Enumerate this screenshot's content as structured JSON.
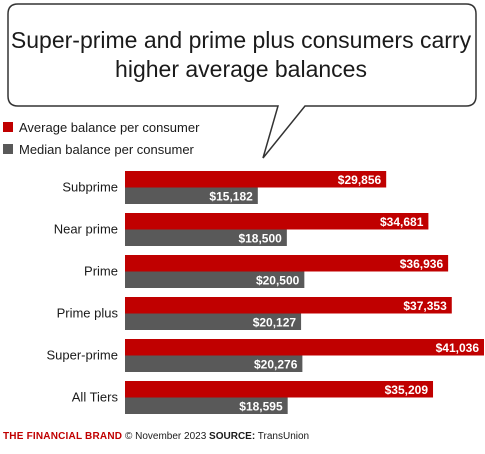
{
  "title": "Super-prime and prime plus consumers carry higher average balances",
  "footer": {
    "brand": "THE FINANCIAL BRAND",
    "date": "© November 2023",
    "source_label": "SOURCE:",
    "source": "TransUnion"
  },
  "colors": {
    "average": "#c00000",
    "median": "#595959"
  },
  "chart_data": {
    "type": "bar",
    "orientation": "horizontal",
    "categories": [
      "Subprime",
      "Near prime",
      "Prime",
      "Prime plus",
      "Super-prime",
      "All Tiers"
    ],
    "series": [
      {
        "name": "Average balance per consumer",
        "values": [
          29856,
          34681,
          36936,
          37353,
          41036,
          35209
        ],
        "labels": [
          "$29,856",
          "$34,681",
          "$36,936",
          "$37,353",
          "$41,036",
          "$35,209"
        ]
      },
      {
        "name": "Median balance per consumer",
        "values": [
          15182,
          18500,
          20500,
          20127,
          20276,
          18595
        ],
        "labels": [
          "$15,182",
          "$18,500",
          "$20,500",
          "$20,127",
          "$20,276",
          "$18,595"
        ]
      }
    ],
    "xlim": [
      0,
      41036
    ],
    "grid": false,
    "legend_position": "top-left"
  }
}
